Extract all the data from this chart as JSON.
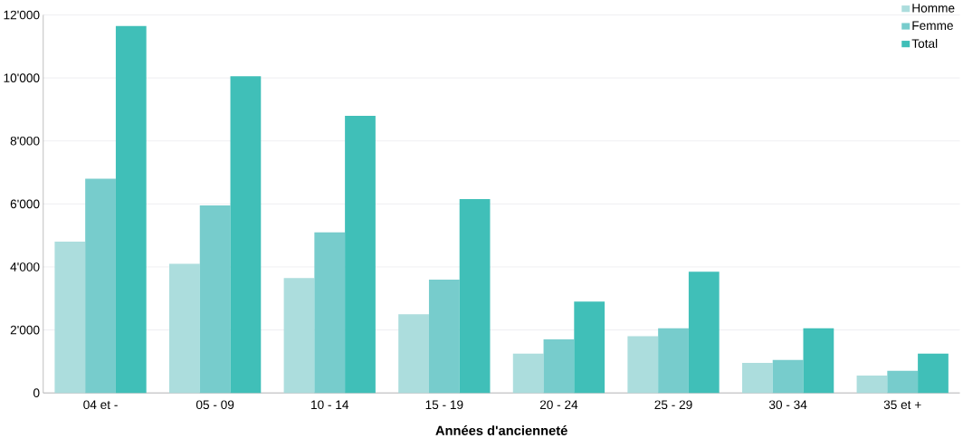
{
  "chart_data": {
    "type": "bar",
    "xlabel": "Années d'ancienneté",
    "categories": [
      "04 et -",
      "05 - 09",
      "10 - 14",
      "15 - 19",
      "20 - 24",
      "25 - 29",
      "30 - 34",
      "35 et +"
    ],
    "series": [
      {
        "name": "Homme",
        "color": "#acdddd",
        "values": [
          4800,
          4100,
          3650,
          2500,
          1250,
          1800,
          950,
          550
        ]
      },
      {
        "name": "Femme",
        "color": "#77cccc",
        "values": [
          6800,
          5950,
          5100,
          3600,
          1700,
          2050,
          1050,
          700
        ]
      },
      {
        "name": "Total",
        "color": "#40bfb8",
        "values": [
          11650,
          10050,
          8800,
          6150,
          2900,
          3850,
          2050,
          1250
        ]
      }
    ],
    "ylim": [
      0,
      12000
    ],
    "yticks": [
      0,
      {
        "value": 2000,
        "label": "2'000"
      },
      {
        "value": 4000,
        "label": "4'000"
      },
      {
        "value": 6000,
        "label": "6'000"
      },
      {
        "value": 8000,
        "label": "8'000"
      },
      {
        "value": 10000,
        "label": "10'000"
      },
      {
        "value": 12000,
        "label": "12'000"
      }
    ],
    "grid": "y",
    "legend": "top right"
  }
}
